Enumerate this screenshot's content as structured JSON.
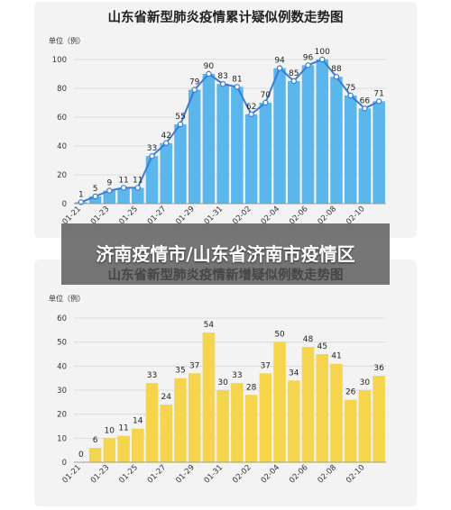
{
  "chart_data": [
    {
      "type": "line",
      "title": "山东省新型肺炎疫情累计疑似例数走势图",
      "ylabel": "单位（例）",
      "ylim": [
        0,
        100
      ],
      "yticks": [
        0,
        20,
        40,
        60,
        80,
        100
      ],
      "categories": [
        "01-21",
        "01-22",
        "01-23",
        "01-24",
        "01-25",
        "01-26",
        "01-27",
        "01-28",
        "01-29",
        "01-30",
        "01-31",
        "02-01",
        "02-02",
        "02-03",
        "02-04",
        "02-05",
        "02-06",
        "02-07",
        "02-08",
        "02-09",
        "02-10",
        "02-11"
      ],
      "tick_labels": [
        "01-21",
        "01-23",
        "01-25",
        "01-27",
        "01-29",
        "01-31",
        "02-02",
        "02-04",
        "02-06",
        "02-08",
        "02-10"
      ],
      "values": [
        1,
        5,
        9,
        11,
        11,
        33,
        42,
        55,
        79,
        90,
        83,
        81,
        62,
        70,
        94,
        85,
        96,
        100,
        88,
        75,
        66,
        71
      ],
      "bar_color": "#5bb6ec",
      "line_color": "#3a7bd5"
    },
    {
      "type": "bar",
      "title": "山东省新型肺炎疫情新增疑似例数走势图",
      "ylabel": "单位（例）",
      "ylim": [
        0,
        60
      ],
      "yticks": [
        0,
        10,
        20,
        30,
        40,
        50,
        60
      ],
      "categories": [
        "01-21",
        "01-22",
        "01-23",
        "01-24",
        "01-25",
        "01-26",
        "01-27",
        "01-28",
        "01-29",
        "01-30",
        "01-31",
        "02-01",
        "02-02",
        "02-03",
        "02-04",
        "02-05",
        "02-06",
        "02-07",
        "02-08",
        "02-09",
        "02-10",
        "02-11"
      ],
      "tick_labels": [
        "01-21",
        "01-23",
        "01-25",
        "01-27",
        "01-29",
        "01-31",
        "02-02",
        "02-04",
        "02-06",
        "02-08",
        "02-10"
      ],
      "values": [
        0,
        6,
        10,
        11,
        14,
        33,
        24,
        35,
        37,
        54,
        30,
        33,
        28,
        37,
        50,
        34,
        48,
        45,
        41,
        26,
        30,
        36
      ],
      "bar_color": "#f5d44e"
    }
  ],
  "overlay": {
    "caption": "济南疫情市/山东省济南市疫情区"
  }
}
